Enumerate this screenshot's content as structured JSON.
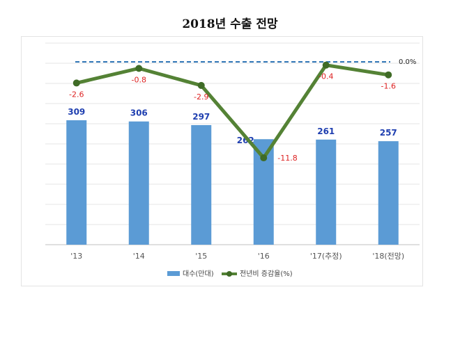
{
  "title": "2018년 수출 전망",
  "chart_data": {
    "type": "bar+line",
    "categories": [
      "'13",
      "'14",
      "'15",
      "'16",
      "'17(추정)",
      "'18(전망)"
    ],
    "series": [
      {
        "name": "대수(만대)",
        "type": "bar",
        "color": "#5b9bd5",
        "values": [
          309,
          306,
          297,
          262,
          261,
          257
        ]
      },
      {
        "name": "전년비 증감율(%)",
        "type": "line",
        "color": "#548235",
        "values": [
          -2.6,
          -0.8,
          -2.9,
          -11.8,
          -0.4,
          -1.6
        ]
      }
    ],
    "reference_line": {
      "value": 0.0,
      "label": "0.0%",
      "style": "dashed",
      "color": "#2e75b6"
    },
    "grid": true,
    "legend_position": "bottom"
  }
}
